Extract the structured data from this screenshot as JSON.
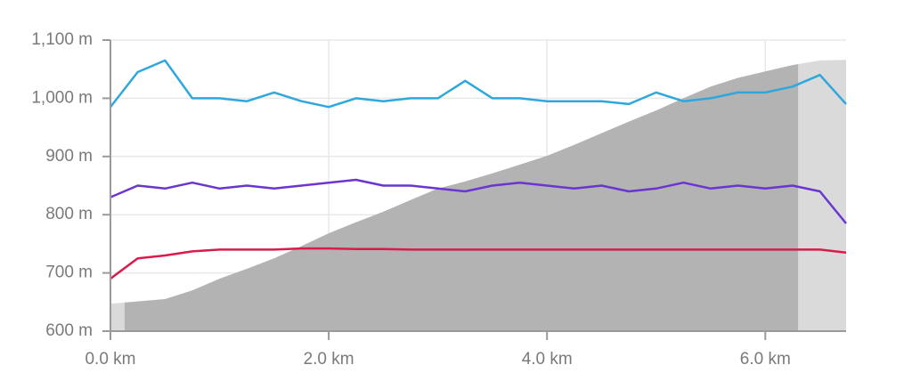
{
  "chart_data": {
    "type": "line",
    "x": [
      0,
      0.25,
      0.5,
      0.75,
      1.0,
      1.25,
      1.5,
      1.75,
      2.0,
      2.25,
      2.5,
      2.75,
      3.0,
      3.25,
      3.5,
      3.75,
      4.0,
      4.25,
      4.5,
      4.75,
      5.0,
      5.25,
      5.5,
      5.75,
      6.0,
      6.25,
      6.5,
      6.74
    ],
    "series": [
      {
        "type": "area",
        "color": "#b3b3b3",
        "muted_color": "#dadada",
        "values": [
          647,
          651,
          655,
          670,
          690,
          707,
          725,
          746,
          768,
          787,
          805,
          825,
          845,
          857,
          871,
          886,
          901,
          920,
          940,
          960,
          979,
          1000,
          1020,
          1035,
          1046,
          1057,
          1065,
          1066
        ]
      },
      {
        "color": "#2ea8dc",
        "values": [
          985,
          1045,
          1065,
          1000,
          1000,
          995,
          1010,
          995,
          985,
          1000,
          995,
          1000,
          1000,
          1030,
          1000,
          1000,
          995,
          995,
          995,
          990,
          1010,
          995,
          1000,
          1010,
          1010,
          1020,
          1040,
          990
        ]
      },
      {
        "color": "#6a35d0",
        "values": [
          830,
          850,
          845,
          855,
          845,
          850,
          845,
          850,
          855,
          860,
          850,
          850,
          845,
          840,
          850,
          855,
          850,
          845,
          850,
          840,
          845,
          855,
          845,
          850,
          845,
          850,
          840,
          785
        ]
      },
      {
        "color": "#d81b4a",
        "values": [
          690,
          725,
          730,
          737,
          740,
          740,
          740,
          742,
          742,
          741,
          741,
          740,
          740,
          740,
          740,
          740,
          740,
          740,
          740,
          740,
          740,
          740,
          740,
          740,
          740,
          740,
          740,
          735
        ]
      }
    ],
    "selected_range": [
      0.13,
      6.3
    ],
    "xlim": [
      0,
      6.74
    ],
    "xticks": [
      {
        "value": 0,
        "label": "0.0 km"
      },
      {
        "value": 2,
        "label": "2.0 km"
      },
      {
        "value": 4,
        "label": "4.0 km"
      },
      {
        "value": 6,
        "label": "6.0 km"
      }
    ],
    "ylim": [
      600,
      1100
    ],
    "yticks": [
      {
        "value": 600,
        "label": "600 m"
      },
      {
        "value": 700,
        "label": "700 m"
      },
      {
        "value": 800,
        "label": "800 m"
      },
      {
        "value": 900,
        "label": "900 m"
      },
      {
        "value": 1000,
        "label": "1,000 m"
      },
      {
        "value": 1100,
        "label": "1,100 m"
      }
    ],
    "grid": true
  }
}
